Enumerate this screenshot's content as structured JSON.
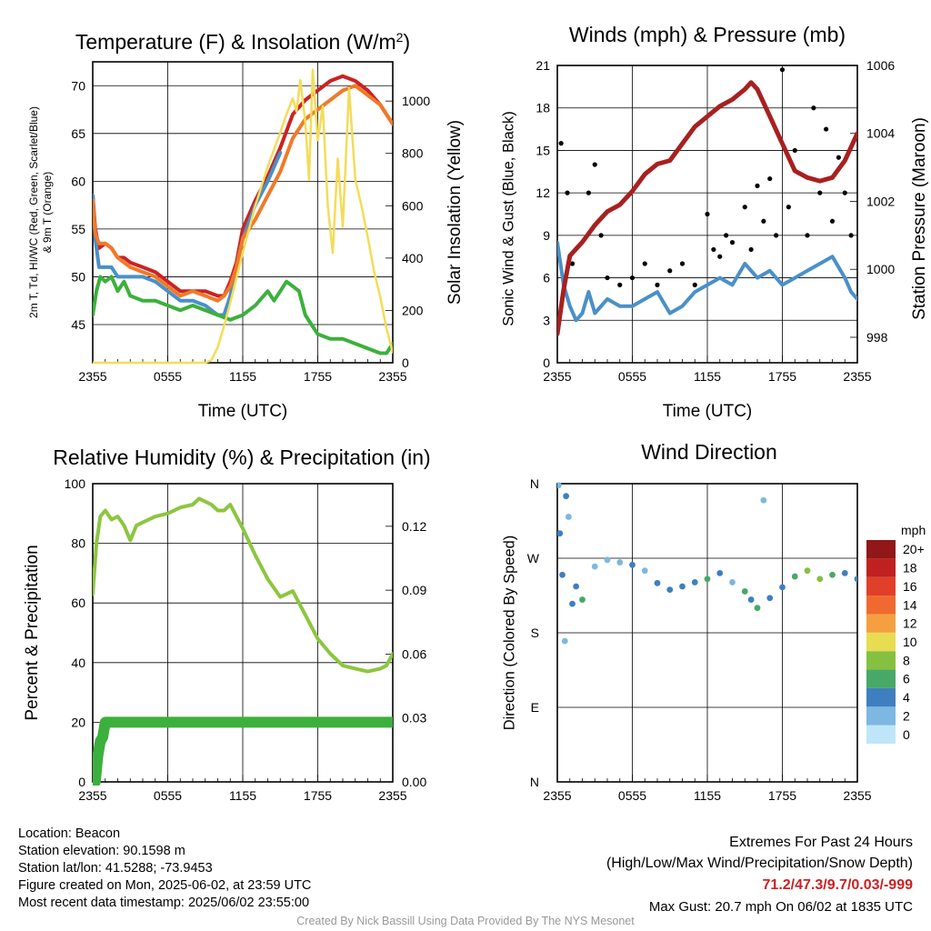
{
  "panels": {
    "temperature": {
      "title": "Temperature (F) & Insolation (W/m²)",
      "ylabel_left": "2m T, Td, HI/WC (Red, Green, Scarlet/Blue)",
      "ylabel_left2": "& 9m T (Orange)",
      "ylabel_right": "Solar Insolation (Yellow)",
      "xlabel": "Time (UTC)"
    },
    "winds": {
      "title": "Winds (mph) & Pressure (mb)",
      "ylabel_left": "Sonic Wind & Gust (Blue, Black)",
      "ylabel_right": "Station Pressure (Maroon)",
      "xlabel": "Time (UTC)"
    },
    "humidity": {
      "title": "Relative Humidity (%) & Precipitation (in)",
      "ylabel_left": "Percent & Precipitation"
    },
    "direction": {
      "title": "Wind Direction",
      "ylabel_left": "Direction (Colored By Speed)",
      "colorbar_unit": "mph"
    }
  },
  "footer": {
    "location": "Location: Beacon",
    "elevation": "Station elevation: 90.1598 m",
    "latlon": "Station lat/lon: 41.5288; -73.9453",
    "created": "Figure created on Mon, 2025-06-02, at 23:59 UTC",
    "recent": "Most recent data timestamp: 2025/06/02 23:55:00",
    "extremes_title": "Extremes For Past 24 Hours",
    "extremes_sub": "(High/Low/Max Wind/Precipitation/Snow Depth)",
    "extremes_values": "71.2/47.3/9.7/0.03/-999",
    "max_gust": "Max Gust: 20.7 mph On 06/02 at 1835 UTC",
    "credit": "Created By Nick Bassill Using Data Provided By The NYS Mesonet"
  },
  "chart_data": [
    {
      "type": "line",
      "panel": "temperature",
      "x_ticks": [
        "2355",
        "0555",
        "1155",
        "1755",
        "2355"
      ],
      "x_range_hours": [
        0,
        24
      ],
      "y_left_ticks": [
        "45",
        "50",
        "55",
        "60",
        "65",
        "70"
      ],
      "ylim_left": [
        41,
        72.5
      ],
      "y_right_ticks": [
        "0",
        "200",
        "400",
        "600",
        "800",
        "1000"
      ],
      "ylim_right": [
        0,
        1150
      ],
      "series": [
        {
          "name": "2m T",
          "color": "#cc2222",
          "axis": "left",
          "x": [
            0,
            0.2,
            0.5,
            1,
            1.5,
            2,
            2.5,
            3,
            4,
            5,
            6,
            7,
            8,
            9,
            10,
            10.5,
            11,
            11.5,
            12,
            13,
            14,
            15,
            16,
            17,
            18,
            19,
            20,
            21,
            22,
            23,
            23.5,
            24
          ],
          "values": [
            58.5,
            55,
            53,
            53.5,
            53,
            52,
            52,
            51.5,
            51,
            50.5,
            49.5,
            48.5,
            48.5,
            48.5,
            48,
            48,
            49.5,
            51.5,
            55,
            58,
            60.5,
            63.5,
            67,
            68.5,
            69.5,
            70.5,
            71,
            70.5,
            69.5,
            68,
            67,
            66
          ]
        },
        {
          "name": "HI/WC",
          "color": "#4a90c8",
          "axis": "left",
          "x": [
            0,
            0.2,
            0.5,
            1,
            1.5,
            2,
            2.5,
            3,
            4,
            5,
            6,
            7,
            8,
            9,
            10,
            10.5,
            11,
            11.5,
            12,
            13,
            14,
            15
          ],
          "values": [
            58.5,
            54,
            51,
            51,
            51,
            50,
            50,
            50,
            50,
            49.5,
            48.5,
            47.5,
            47.5,
            47,
            46,
            46,
            48,
            51,
            54,
            57.5,
            60,
            63
          ]
        },
        {
          "name": "9m T",
          "color": "#f07a28",
          "axis": "left",
          "x": [
            0,
            0.2,
            0.5,
            1,
            1.5,
            2,
            2.5,
            3,
            4,
            5,
            6,
            7,
            8,
            9,
            10,
            10.5,
            11,
            11.5,
            12,
            13,
            14,
            15,
            16,
            17,
            18,
            19,
            20,
            21,
            22,
            23,
            23.5,
            24
          ],
          "values": [
            58,
            54.5,
            53.5,
            53.5,
            53,
            52,
            51.5,
            51,
            50.5,
            50,
            49,
            48,
            48.5,
            48,
            47.5,
            48,
            49,
            51,
            54,
            56,
            58.5,
            61,
            64.5,
            66.5,
            67.5,
            68.5,
            69.5,
            70,
            69,
            68,
            67,
            66
          ]
        },
        {
          "name": "Td",
          "color": "#3cb03c",
          "axis": "left",
          "x": [
            0,
            0.3,
            0.6,
            1,
            1.5,
            2,
            2.5,
            3,
            4,
            5,
            6,
            7,
            8,
            9,
            10,
            11,
            12,
            12.5,
            13,
            14,
            14.5,
            15,
            15.5,
            16,
            16.5,
            17,
            17.5,
            18,
            19,
            20,
            21,
            22,
            23,
            23.5,
            24
          ],
          "values": [
            46,
            48.5,
            50,
            49.5,
            50,
            48.5,
            49.5,
            48,
            47.5,
            47.5,
            47,
            46.5,
            47,
            46.5,
            46,
            45.5,
            46,
            46.5,
            47,
            48.5,
            47.5,
            48.5,
            49.5,
            49,
            48.5,
            46,
            45,
            44,
            43.5,
            43.5,
            43,
            42.5,
            42,
            42,
            43
          ]
        },
        {
          "name": "Solar",
          "color": "#f4dc58",
          "axis": "right",
          "x": [
            0,
            9,
            9.5,
            10,
            10.5,
            11,
            12,
            13,
            14,
            15,
            15.5,
            16,
            16.3,
            16.6,
            17,
            17.3,
            17.6,
            18,
            18.4,
            18.8,
            19.2,
            19.6,
            20,
            20.5,
            21,
            21.5,
            22,
            22.5,
            23,
            23.5,
            24
          ],
          "values": [
            0,
            0,
            10,
            60,
            140,
            230,
            420,
            600,
            750,
            880,
            950,
            1010,
            960,
            1080,
            920,
            700,
            1120,
            850,
            980,
            600,
            420,
            780,
            520,
            1050,
            700,
            600,
            480,
            350,
            250,
            130,
            40
          ]
        }
      ]
    },
    {
      "type": "line",
      "panel": "winds",
      "x_ticks": [
        "2355",
        "0555",
        "1155",
        "1755",
        "2355"
      ],
      "x_range_hours": [
        0,
        24
      ],
      "y_left_ticks": [
        "0",
        "3",
        "6",
        "9",
        "12",
        "15",
        "18",
        "21"
      ],
      "ylim_left": [
        0,
        21
      ],
      "y_right_ticks": [
        "998",
        "1000",
        "1002",
        "1004",
        "1006"
      ],
      "ylim_right": [
        997.25,
        1006
      ],
      "series": [
        {
          "name": "Sonic Wind",
          "color": "#4a90c8",
          "axis": "left",
          "x": [
            0,
            0.5,
            1,
            1.5,
            2,
            2.5,
            3,
            4,
            5,
            6,
            7,
            8,
            9,
            10,
            11,
            12,
            13,
            14,
            15,
            16,
            17,
            18,
            19,
            20,
            21,
            22,
            23,
            23.5,
            24
          ],
          "values": [
            8.5,
            5.5,
            4,
            3,
            3.5,
            5,
            3.5,
            4.5,
            4,
            4,
            4.5,
            5,
            3.5,
            4,
            5,
            5.5,
            6,
            5.5,
            7,
            6,
            6.5,
            5.5,
            6,
            6.5,
            7,
            7.5,
            6,
            5,
            4.5
          ]
        },
        {
          "name": "Gust",
          "color": "#000000",
          "axis": "left",
          "x": [
            0.3,
            0.8,
            1.2,
            2.5,
            3,
            3.5,
            4,
            5,
            6,
            7,
            8,
            9,
            10,
            11,
            12,
            12.5,
            13,
            13.5,
            14,
            15,
            15.5,
            16,
            16.5,
            17,
            17.5,
            18,
            18.5,
            19,
            20,
            20.5,
            21,
            21.5,
            22,
            22.5,
            23,
            23.5
          ],
          "values": [
            15.5,
            12,
            7,
            12,
            14,
            9,
            6,
            5.5,
            6,
            7,
            5.5,
            6.5,
            7,
            5.5,
            10.5,
            8,
            7.5,
            9,
            8.5,
            11,
            8,
            12.5,
            10,
            13,
            9,
            20.7,
            11,
            15,
            9,
            18,
            12,
            16.5,
            10,
            14.5,
            12,
            9
          ]
        },
        {
          "name": "Pressure",
          "color": "#a82020",
          "axis": "right",
          "x": [
            0,
            0.5,
            1,
            2,
            3,
            4,
            5,
            6,
            7,
            8,
            9,
            10,
            11,
            12,
            13,
            14,
            15,
            15.5,
            16,
            17,
            18,
            19,
            20,
            21,
            22,
            23,
            24
          ],
          "values": [
            998.1,
            999.4,
            1000.4,
            1000.8,
            1001.3,
            1001.7,
            1001.9,
            1002.3,
            1002.8,
            1003.1,
            1003.2,
            1003.7,
            1004.2,
            1004.5,
            1004.8,
            1005.0,
            1005.3,
            1005.5,
            1005.3,
            1004.5,
            1003.7,
            1002.9,
            1002.7,
            1002.6,
            1002.7,
            1003.2,
            1004.0
          ]
        }
      ]
    },
    {
      "type": "line",
      "panel": "humidity",
      "x_ticks": [
        "2355",
        "0555",
        "1155",
        "1755",
        "2355"
      ],
      "x_range_hours": [
        0,
        24
      ],
      "y_left_ticks": [
        "0",
        "20",
        "40",
        "60",
        "80",
        "100"
      ],
      "ylim_left": [
        0,
        100
      ],
      "y_right_ticks": [
        "0.00",
        "0.03",
        "0.06",
        "0.09",
        "0.12"
      ],
      "ylim_right": [
        0,
        0.14
      ],
      "series": [
        {
          "name": "RH",
          "color": "#8cc63f",
          "axis": "left",
          "x": [
            0,
            0.3,
            0.6,
            1,
            1.5,
            2,
            2.5,
            3,
            3.5,
            4,
            5,
            6,
            7,
            8,
            8.5,
            9,
            9.5,
            10,
            10.5,
            11,
            11.5,
            12,
            13,
            14,
            15,
            16,
            17,
            17.5,
            18,
            19,
            20,
            21,
            22,
            23,
            23.5,
            24
          ],
          "values": [
            63,
            80,
            89,
            91,
            88,
            89,
            86,
            81,
            86,
            87,
            89,
            90,
            92,
            93,
            95,
            94,
            93,
            91,
            91,
            93,
            89,
            85,
            76,
            68,
            62,
            64,
            56,
            52,
            48,
            43,
            39,
            38,
            37,
            38,
            39,
            43
          ]
        },
        {
          "name": "Precipitation",
          "color": "#3cb03c",
          "axis": "right",
          "x": [
            0,
            0.2,
            0.4,
            0.6,
            0.8,
            1,
            24
          ],
          "values": [
            0,
            0.0,
            0.012,
            0.019,
            0.021,
            0.028,
            0.028
          ]
        }
      ]
    },
    {
      "type": "scatter",
      "panel": "direction",
      "x_ticks": [
        "2355",
        "0555",
        "1155",
        "1755",
        "2355"
      ],
      "x_range_hours": [
        0,
        24
      ],
      "y_ticks": [
        "N",
        "E",
        "S",
        "W",
        "N"
      ],
      "ylim_degrees": [
        0,
        360
      ],
      "colorbar": {
        "labels": [
          "0",
          "2",
          "4",
          "6",
          "8",
          "10",
          "12",
          "14",
          "16",
          "18",
          "20+"
        ],
        "colors": [
          "#bfe6f8",
          "#7cb8e2",
          "#3f7fc0",
          "#48a868",
          "#86c040",
          "#e8dc50",
          "#f5a040",
          "#f06a30",
          "#e04028",
          "#c02020",
          "#901818"
        ]
      },
      "points": [
        {
          "x": 0.1,
          "dir": 358,
          "speed": 3
        },
        {
          "x": 0.2,
          "dir": 300,
          "speed": 4
        },
        {
          "x": 0.4,
          "dir": 250,
          "speed": 5
        },
        {
          "x": 0.6,
          "dir": 170,
          "speed": 2
        },
        {
          "x": 0.7,
          "dir": 345,
          "speed": 4
        },
        {
          "x": 0.9,
          "dir": 320,
          "speed": 3
        },
        {
          "x": 1.2,
          "dir": 215,
          "speed": 4
        },
        {
          "x": 1.5,
          "dir": 236,
          "speed": 5
        },
        {
          "x": 2,
          "dir": 220,
          "speed": 6
        },
        {
          "x": 3,
          "dir": 260,
          "speed": 3
        },
        {
          "x": 4,
          "dir": 268,
          "speed": 2
        },
        {
          "x": 5,
          "dir": 265,
          "speed": 3
        },
        {
          "x": 6,
          "dir": 262,
          "speed": 4
        },
        {
          "x": 7,
          "dir": 255,
          "speed": 3
        },
        {
          "x": 8,
          "dir": 240,
          "speed": 4
        },
        {
          "x": 9,
          "dir": 232,
          "speed": 5
        },
        {
          "x": 10,
          "dir": 236,
          "speed": 4
        },
        {
          "x": 11,
          "dir": 241,
          "speed": 5
        },
        {
          "x": 12,
          "dir": 245,
          "speed": 6
        },
        {
          "x": 13,
          "dir": 252,
          "speed": 4
        },
        {
          "x": 14,
          "dir": 241,
          "speed": 3
        },
        {
          "x": 15,
          "dir": 230,
          "speed": 6
        },
        {
          "x": 15.5,
          "dir": 220,
          "speed": 5
        },
        {
          "x": 16,
          "dir": 210,
          "speed": 7
        },
        {
          "x": 16.5,
          "dir": 340,
          "speed": 2
        },
        {
          "x": 17,
          "dir": 222,
          "speed": 5
        },
        {
          "x": 18,
          "dir": 235,
          "speed": 4
        },
        {
          "x": 19,
          "dir": 248,
          "speed": 7
        },
        {
          "x": 20,
          "dir": 255,
          "speed": 8
        },
        {
          "x": 21,
          "dir": 245,
          "speed": 9
        },
        {
          "x": 22,
          "dir": 250,
          "speed": 6
        },
        {
          "x": 23,
          "dir": 252,
          "speed": 4
        },
        {
          "x": 24,
          "dir": 245,
          "speed": 5
        }
      ]
    }
  ]
}
